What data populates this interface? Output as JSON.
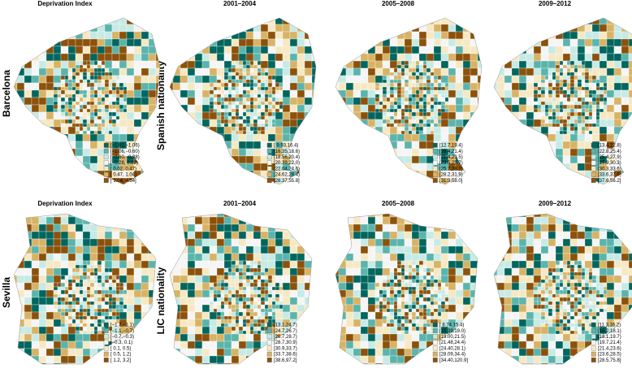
{
  "palette": [
    "#01665e",
    "#5ab4ac",
    "#c7eae5",
    "#f5f5f5",
    "#f6e8c3",
    "#d8b365",
    "#8c510a"
  ],
  "rows": [
    {
      "label": "Barcelona",
      "group_label": "Spanish nationality",
      "panels": [
        {
          "title": "Deprivation Index",
          "legend": [
            "[−1.92,−1.06)",
            "[−1.06,−0.60)",
            "[−0.60,−0.28)",
            "[−0.28, 0.02)",
            "[ 0.02, 0.47)",
            "[ 0.47, 1.04)",
            "[ 1.04, 4.34]"
          ]
        },
        {
          "title": "2001–2004",
          "legend": [
            "[ 9.93,16.4)",
            "[16.35,18.6)",
            "[18.56,20.4)",
            "[20.39,22.0)",
            "[22.04,24.6)",
            "[24.62,28.4)",
            "[28.37,55.8]"
          ]
        },
        {
          "title": "2005–2008",
          "legend": [
            "[12.7,19.4)",
            "[19.4,21.4)",
            "[21.4,23.5)",
            "[23.5,25.7)",
            "[25.7,28.2)",
            "[28.2,31.9)",
            "[31.9,58.0]"
          ]
        },
        {
          "title": "2009–2012",
          "legend": [
            "[13.4,22.8)",
            "[22.8,25.4)",
            "[25.4,27.9)",
            "[27.9,30.3)",
            "[30.3,33.6)",
            "[33.6,37.6)",
            "[37.6,56.2]"
          ]
        }
      ]
    },
    {
      "label": "Sevilla",
      "group_label": "LIC nationality",
      "panels": [
        {
          "title": "Deprivation Index",
          "legend": [
            "[−1.7,−1.1)",
            "[−1.1,−0.7)",
            "[−0.7,−0.3)",
            "[−0.3, 0.1)",
            "[ 0.1, 0.5)",
            "[ 0.5, 1.2)",
            "[ 1.2, 3.2]"
          ]
        },
        {
          "title": "2001–2004",
          "legend": [
            "[13.1,24.7)",
            "[24.7,26.7)",
            "[26.7,28.7)",
            "[28.7,30.9)",
            "[30.9,33.7)",
            "[33.7,38.6)",
            "[38.6,97.2]"
          ]
        },
        {
          "title": "2005–2008",
          "legend": [
            "[ 8.74,15.4)",
            "[15.39,19.0)",
            "[19.00,21.5)",
            "[21.48,24.4)",
            "[24.40,28.1)",
            "[28.09,34.4)",
            "[34.40,120.9]"
          ]
        },
        {
          "title": "2009–2012",
          "legend": [
            "[11.3,16.2)",
            "[16.2,18.1)",
            "[18.1,19.7)",
            "[19.7,21.4)",
            "[21.4,23.6)",
            "[23.6,28.5)",
            "[28.5,75.8]"
          ]
        }
      ]
    }
  ]
}
